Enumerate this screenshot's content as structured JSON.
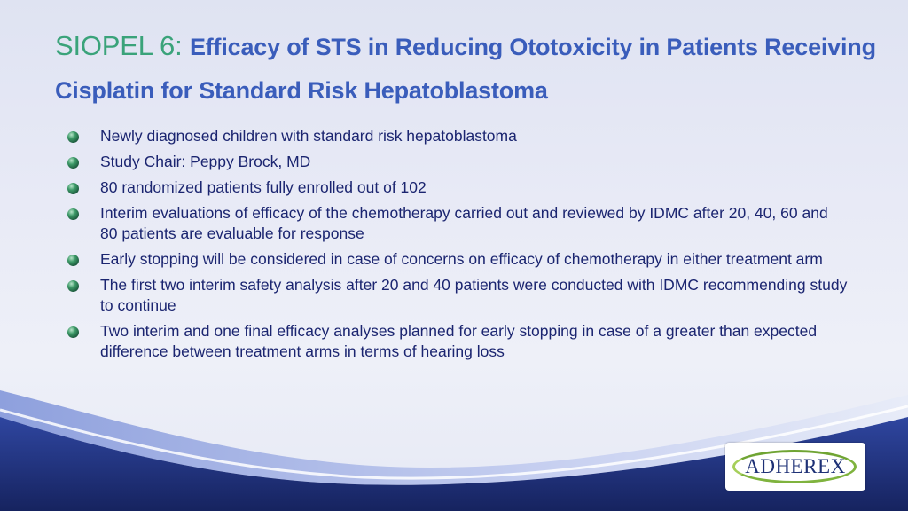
{
  "slide": {
    "title_lead": "SIOPEL 6: ",
    "title_rest": "Efficacy of STS in Reducing Ototoxicity in Patients Receiving Cisplatin for Standard Risk Hepatoblastoma",
    "bullets": [
      "Newly diagnosed children with standard risk hepatoblastoma",
      "Study Chair: Peppy Brock, MD",
      "80 randomized patients fully enrolled out of 102",
      "Interim evaluations of efficacy of the chemotherapy carried out and reviewed by IDMC after 20, 40, 60 and 80 patients are evaluable for response",
      "Early stopping will be considered in case of concerns on efficacy of chemotherapy in either treatment arm",
      "The first two interim safety analysis after 20 and 40 patients were conducted with IDMC recommending study to continue",
      "Two interim and one final efficacy analyses planned for early stopping in case of a greater than expected difference between treatment arms in terms of hearing loss"
    ],
    "logo_text": "ADHEREX",
    "colors": {
      "title_lead": "#3aa37a",
      "title": "#3a5dbb",
      "body_text": "#1b2570",
      "wave_dark": "#1f2f7d",
      "wave_light": "#7f93d8"
    },
    "bullet_icon": "green-sphere-bullet-icon"
  }
}
